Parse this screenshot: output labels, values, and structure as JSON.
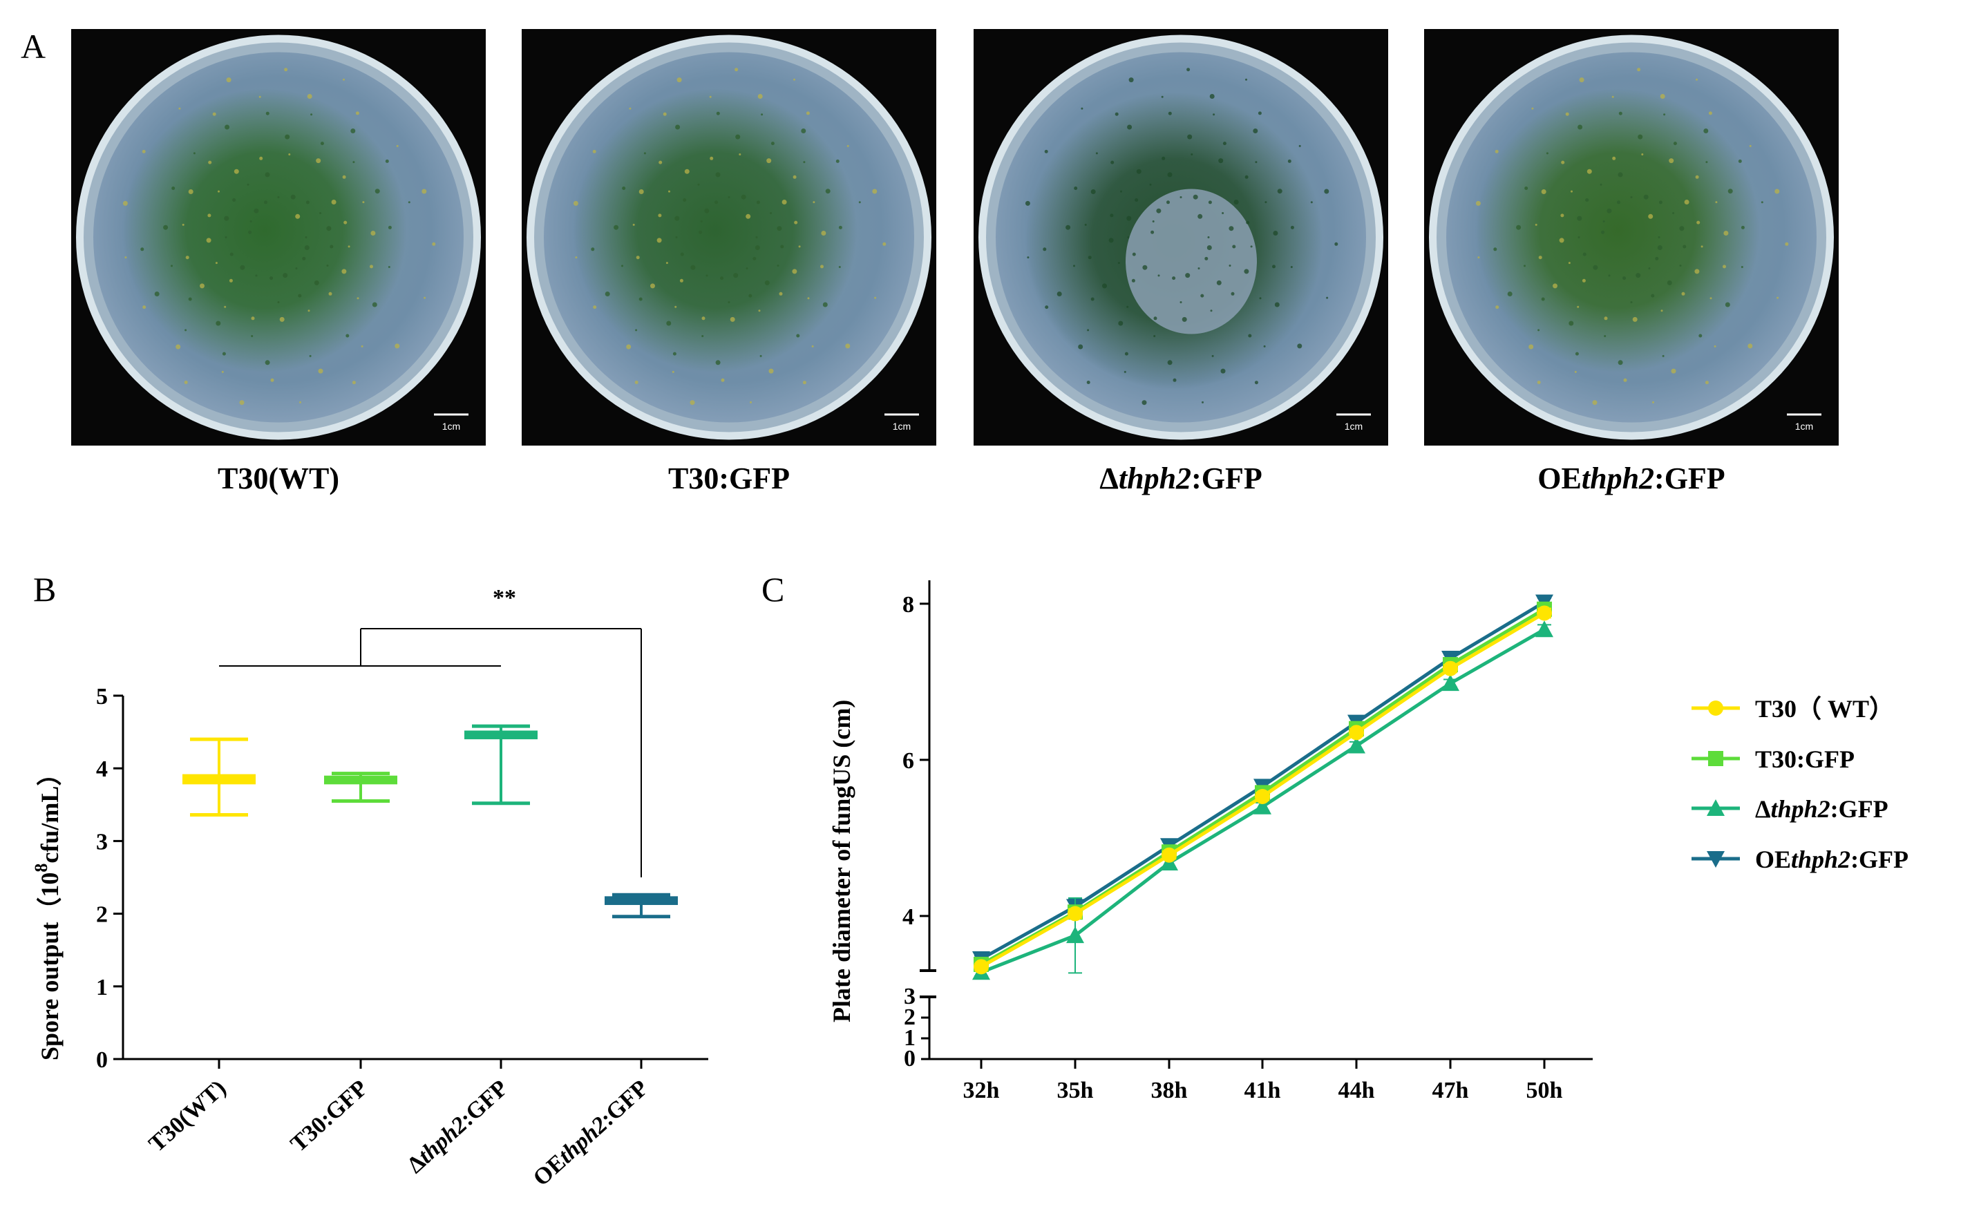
{
  "panel_a": {
    "letter": "A",
    "scale_label": "1cm",
    "plates": [
      {
        "pre": "T30(WT)",
        "it": "",
        "post": "",
        "green": "#2f6a2e",
        "ring": "#c9d9e0"
      },
      {
        "pre": "T30:GFP",
        "it": "",
        "post": "",
        "green": "#2e6431",
        "ring": "#c9d9e0"
      },
      {
        "pre": "Δ",
        "it": "thph2",
        "post": ":GFP",
        "green": "#254f30",
        "ring": "#c2cfd8"
      },
      {
        "pre": "OE",
        "it": "thph2",
        "post": ":GFP",
        "green": "#356a2a",
        "ring": "#cdd9de"
      }
    ]
  },
  "panel_b": {
    "letter": "B",
    "significance": "**",
    "y_title_pre": "Spore output（10",
    "y_title_sup": "8",
    "y_title_post": "cfu/mL）"
  },
  "panel_c": {
    "letter": "C",
    "y_title": "Plate diameter of fungUS (cm)"
  },
  "chart_data": [
    {
      "type": "box",
      "ylabel": "Spore output（10^8cfu/mL）",
      "ylim": [
        0,
        5
      ],
      "yticks": [
        0,
        1,
        2,
        3,
        4,
        5
      ],
      "categories": [
        "T30(WT)",
        "T30:GFP",
        "Δthph2:GFP",
        "OEthph2:GFP"
      ],
      "series": [
        {
          "name": "T30(WT)",
          "color": "#ffe500",
          "min": 3.36,
          "q1": 3.78,
          "median": 3.84,
          "q3": 3.92,
          "max": 4.4
        },
        {
          "name": "T30:GFP",
          "color": "#5ddc3a",
          "min": 3.55,
          "q1": 3.78,
          "median": 3.84,
          "q3": 3.9,
          "max": 3.93
        },
        {
          "name": "Δthph2:GFP",
          "color": "#1db47b",
          "min": 3.52,
          "q1": 4.4,
          "median": 4.45,
          "q3": 4.52,
          "max": 4.58
        },
        {
          "name": "OEthph2:GFP",
          "color": "#1a6d8a",
          "min": 1.96,
          "q1": 2.12,
          "median": 2.18,
          "q3": 2.24,
          "max": 2.26
        }
      ],
      "annotation": "**"
    },
    {
      "type": "line",
      "ylabel": "Plate diameter of fungUS (cm)",
      "x": [
        "32h",
        "35h",
        "38h",
        "41h",
        "44h",
        "47h",
        "50h"
      ],
      "ylim": [
        0,
        8.3
      ],
      "yticks_lower": [
        0,
        1,
        2,
        3
      ],
      "yticks_upper": [
        4,
        6,
        8
      ],
      "axis_break": [
        3,
        3.3
      ],
      "legend_position": "right",
      "series": [
        {
          "name": "T30（WT）",
          "pre": "T30（ WT）",
          "it": "",
          "post": "",
          "color": "#ffe500",
          "marker": "circle",
          "values": [
            3.35,
            4.03,
            4.78,
            5.53,
            6.35,
            7.17,
            7.88
          ],
          "err": [
            0.04,
            0.06,
            0.05,
            0.05,
            0.05,
            0.05,
            0.06
          ]
        },
        {
          "name": "T30:GFP",
          "pre": "T30:GFP",
          "it": "",
          "post": "",
          "color": "#5ddc3a",
          "marker": "square",
          "values": [
            3.38,
            4.05,
            4.82,
            5.58,
            6.4,
            7.22,
            7.93
          ],
          "err": [
            0.04,
            0.05,
            0.05,
            0.05,
            0.05,
            0.05,
            0.05
          ]
        },
        {
          "name": "Δthph2:GFP",
          "pre": "Δ",
          "it": "thph2",
          "post": ":GFP",
          "color": "#1db47b",
          "marker": "triangle-up",
          "values": [
            3.28,
            3.75,
            4.68,
            5.4,
            6.18,
            6.98,
            7.67
          ],
          "err": [
            0.05,
            0.48,
            0.06,
            0.05,
            0.05,
            0.05,
            0.06
          ]
        },
        {
          "name": "OEthph2:GFP",
          "pre": "OE",
          "it": "thph2",
          "post": ":GFP",
          "color": "#1a6d8a",
          "marker": "triangle-down",
          "values": [
            3.45,
            4.12,
            4.9,
            5.66,
            6.48,
            7.3,
            8.02
          ],
          "err": [
            0.04,
            0.1,
            0.05,
            0.05,
            0.05,
            0.05,
            0.05
          ]
        }
      ]
    }
  ]
}
